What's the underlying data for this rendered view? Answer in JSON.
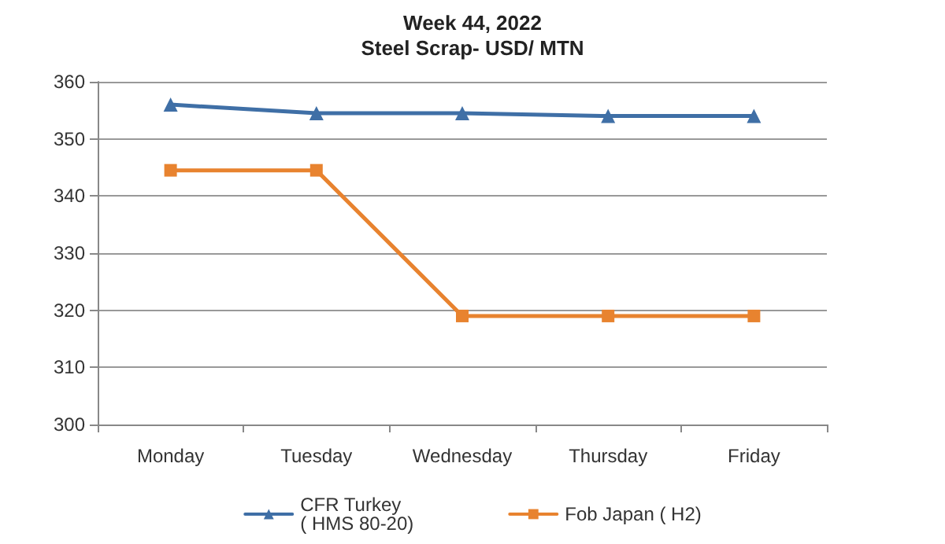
{
  "chart_data": {
    "type": "line",
    "title": "Week 44, 2022",
    "subtitle": "Steel Scrap- USD/ MTN",
    "categories": [
      "Monday",
      "Tuesday",
      "Wednesday",
      "Thursday",
      "Friday"
    ],
    "series": [
      {
        "name": "CFR Turkey\n( HMS 80-20)",
        "color": "#3f6fa6",
        "marker": "triangle",
        "values": [
          356,
          354.5,
          354.5,
          354,
          354
        ]
      },
      {
        "name": "Fob Japan ( H2)",
        "color": "#e8832f",
        "marker": "square",
        "values": [
          344.5,
          344.5,
          319,
          319,
          319
        ]
      }
    ],
    "ylim": [
      300,
      360
    ],
    "yticks": [
      300,
      310,
      320,
      330,
      340,
      350,
      360
    ],
    "grid": "y",
    "legend": "bottom",
    "line_style": "solid"
  }
}
